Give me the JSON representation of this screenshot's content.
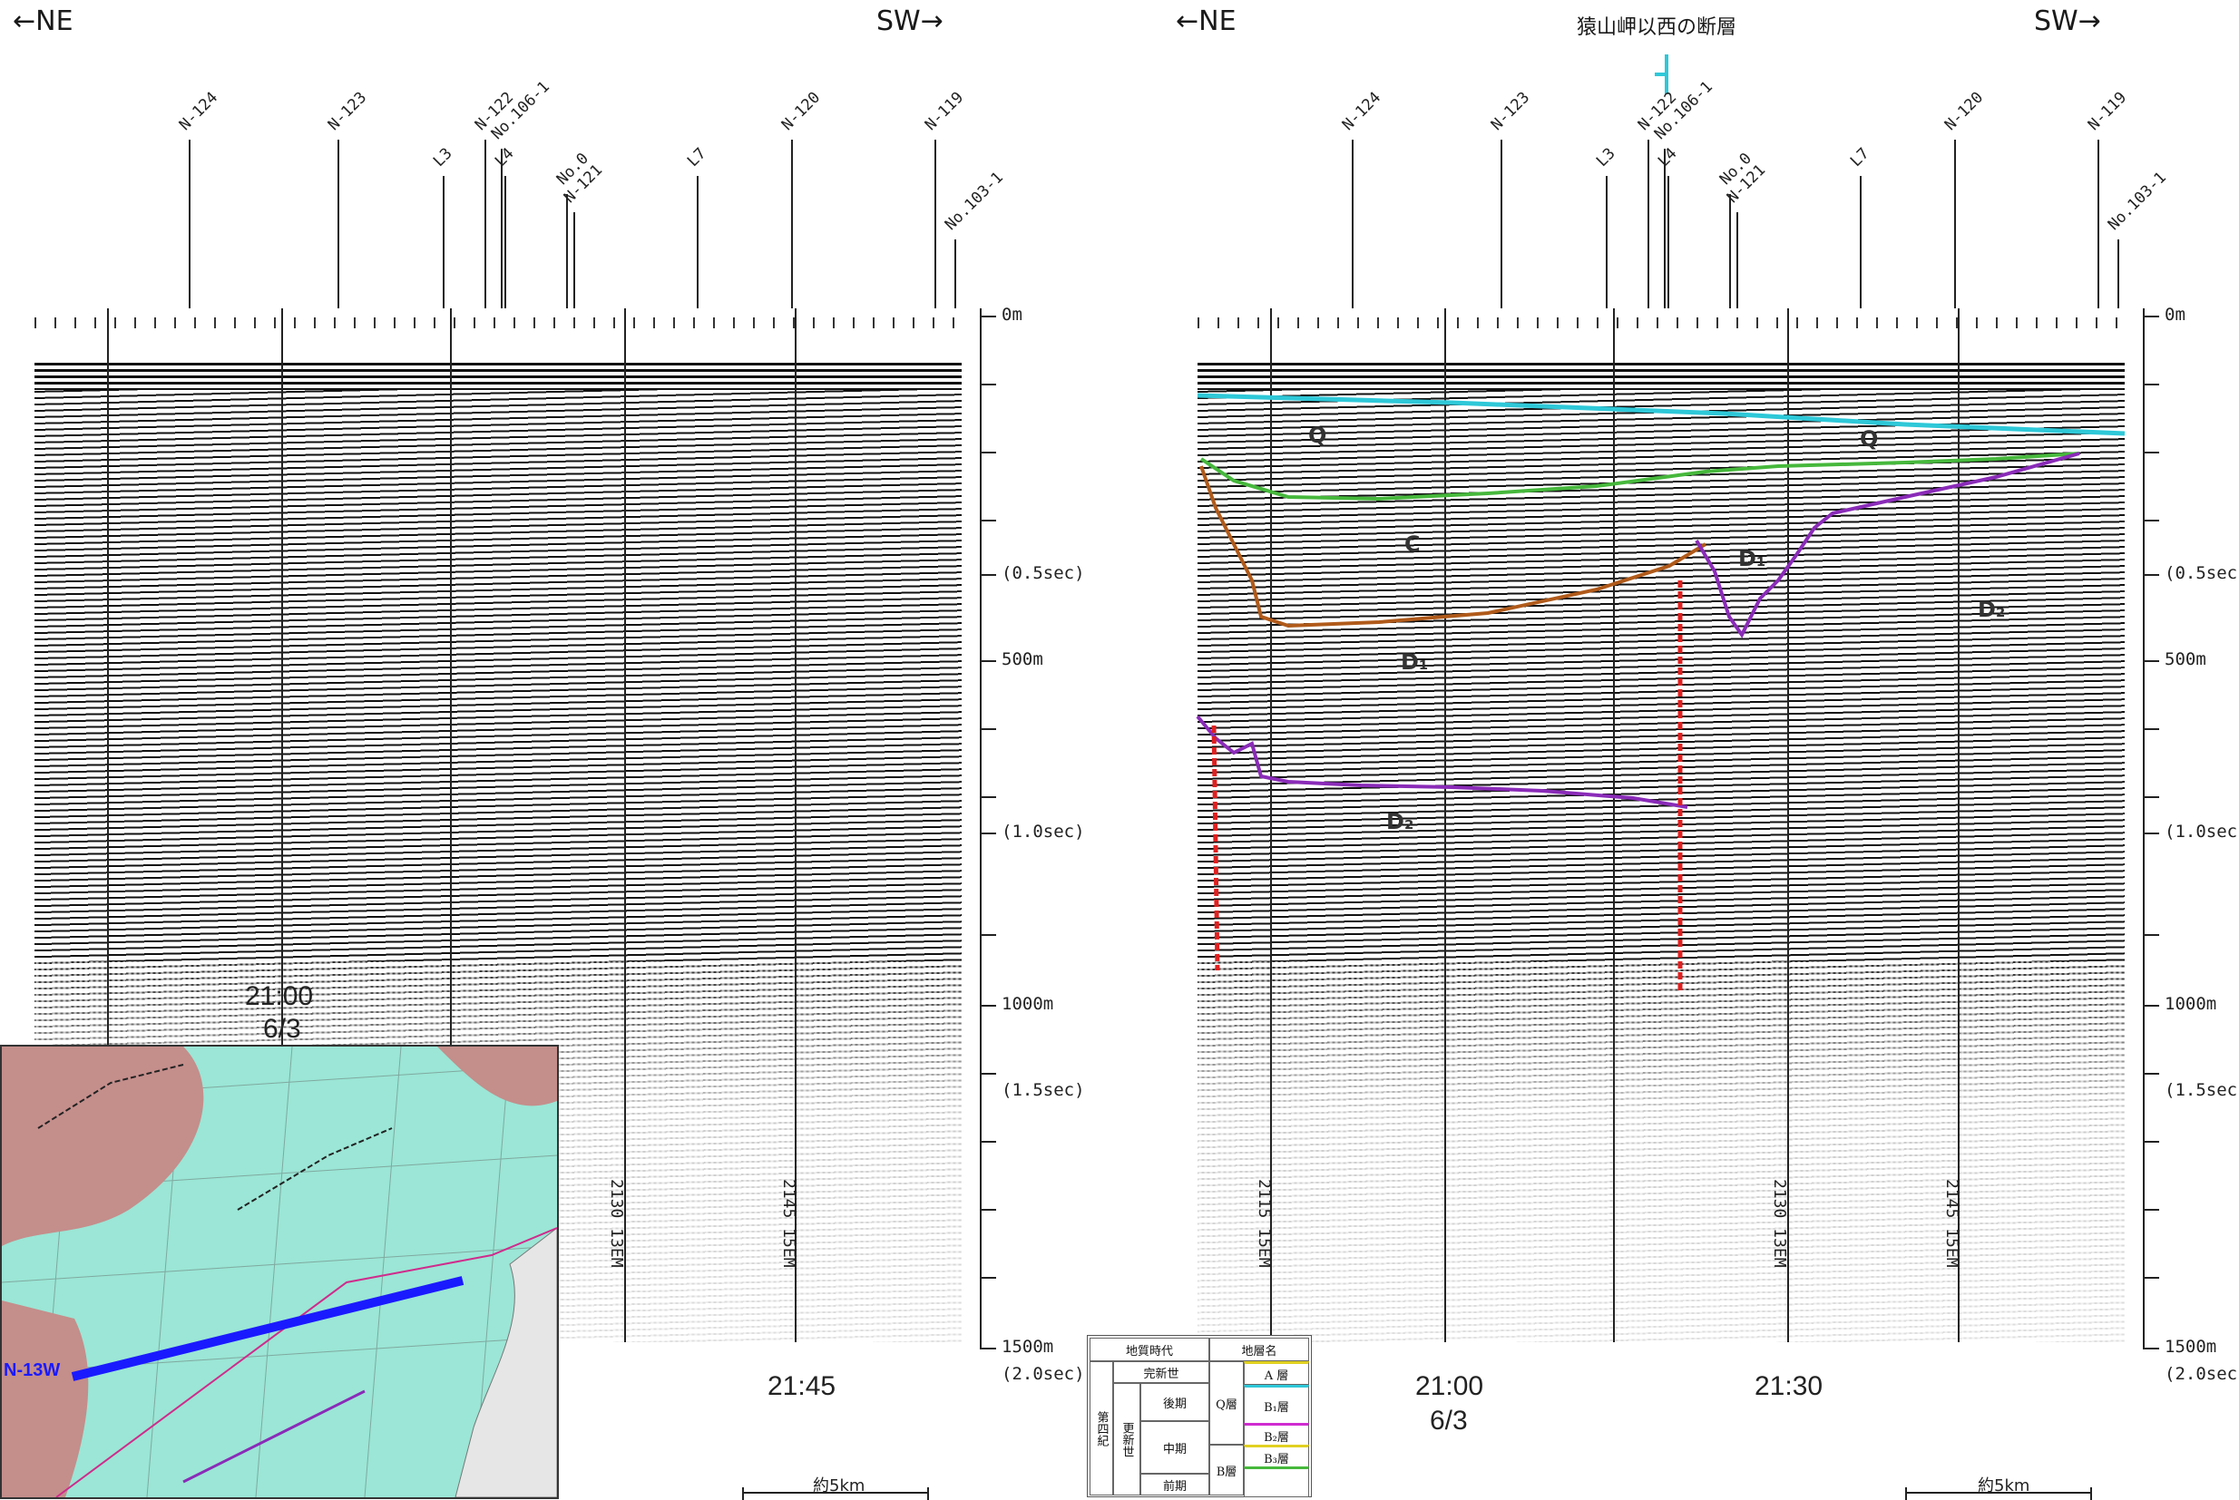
{
  "left_panel": {
    "dir_left": "←NE",
    "dir_right": "SW→",
    "stations": [
      "N-124",
      "N-123",
      "L3",
      "N-122",
      "No.106-1",
      "L4",
      "No.0",
      "N-121",
      "L7",
      "N-120",
      "N-119",
      "No.103-1"
    ],
    "time_label": "21:45",
    "start_time": "21:00",
    "start_date": "6/3",
    "scale_label": "約5km",
    "vertical_stamp_1": "2130 13EM",
    "vertical_stamp_2": "2145 15EM"
  },
  "right_panel": {
    "dir_left": "←NE",
    "dir_right": "SW→",
    "title": "猿山岬以西の断層",
    "stations": [
      "N-124",
      "N-123",
      "L3",
      "N-122",
      "No.106-1",
      "L4",
      "No.0",
      "N-121",
      "L7",
      "N-120",
      "N-119",
      "No.103-1"
    ],
    "layer_labels": [
      "Q",
      "Q",
      "C",
      "D₁",
      "D₁",
      "D₂",
      "D₂"
    ],
    "time_label_1": "21:00",
    "date_label": "6/3",
    "time_label_2": "21:30",
    "scale_label": "約5km",
    "vertical_stamp_1": "2115 15EM",
    "vertical_stamp_2": "2130 13EM",
    "vertical_stamp_3": "2145 15EM"
  },
  "depth_axis": {
    "labels": [
      "0m",
      "(0.5sec)",
      "500m",
      "(1.0sec)",
      "1000m",
      "(1.5sec)",
      "1500m",
      "(2.0sec)"
    ]
  },
  "inset_map": {
    "line_label": "N-13W",
    "colors": {
      "sea": "#9be6d6",
      "land": "#c48e8b",
      "route": "#1a1aff"
    }
  },
  "legend": {
    "header_age": "地質時代",
    "header_unit": "地層名",
    "era": "第四紀",
    "epoch_holocene": "完新世",
    "epoch_pleistocene": "更新世",
    "sub_late": "後期",
    "sub_middle": "中期",
    "sub_early": "前期",
    "q_layer": "Q層",
    "a_layer": "A 層",
    "b_layer": "B層",
    "b1": "B₁層",
    "b2": "B₂層",
    "b3": "B₃層"
  },
  "horizon_colors": {
    "a_top": "#2ec8d8",
    "b1": "#46b83c",
    "b2": "#b05a1a",
    "d": "#8a2bb8",
    "fault": "#e02020"
  }
}
